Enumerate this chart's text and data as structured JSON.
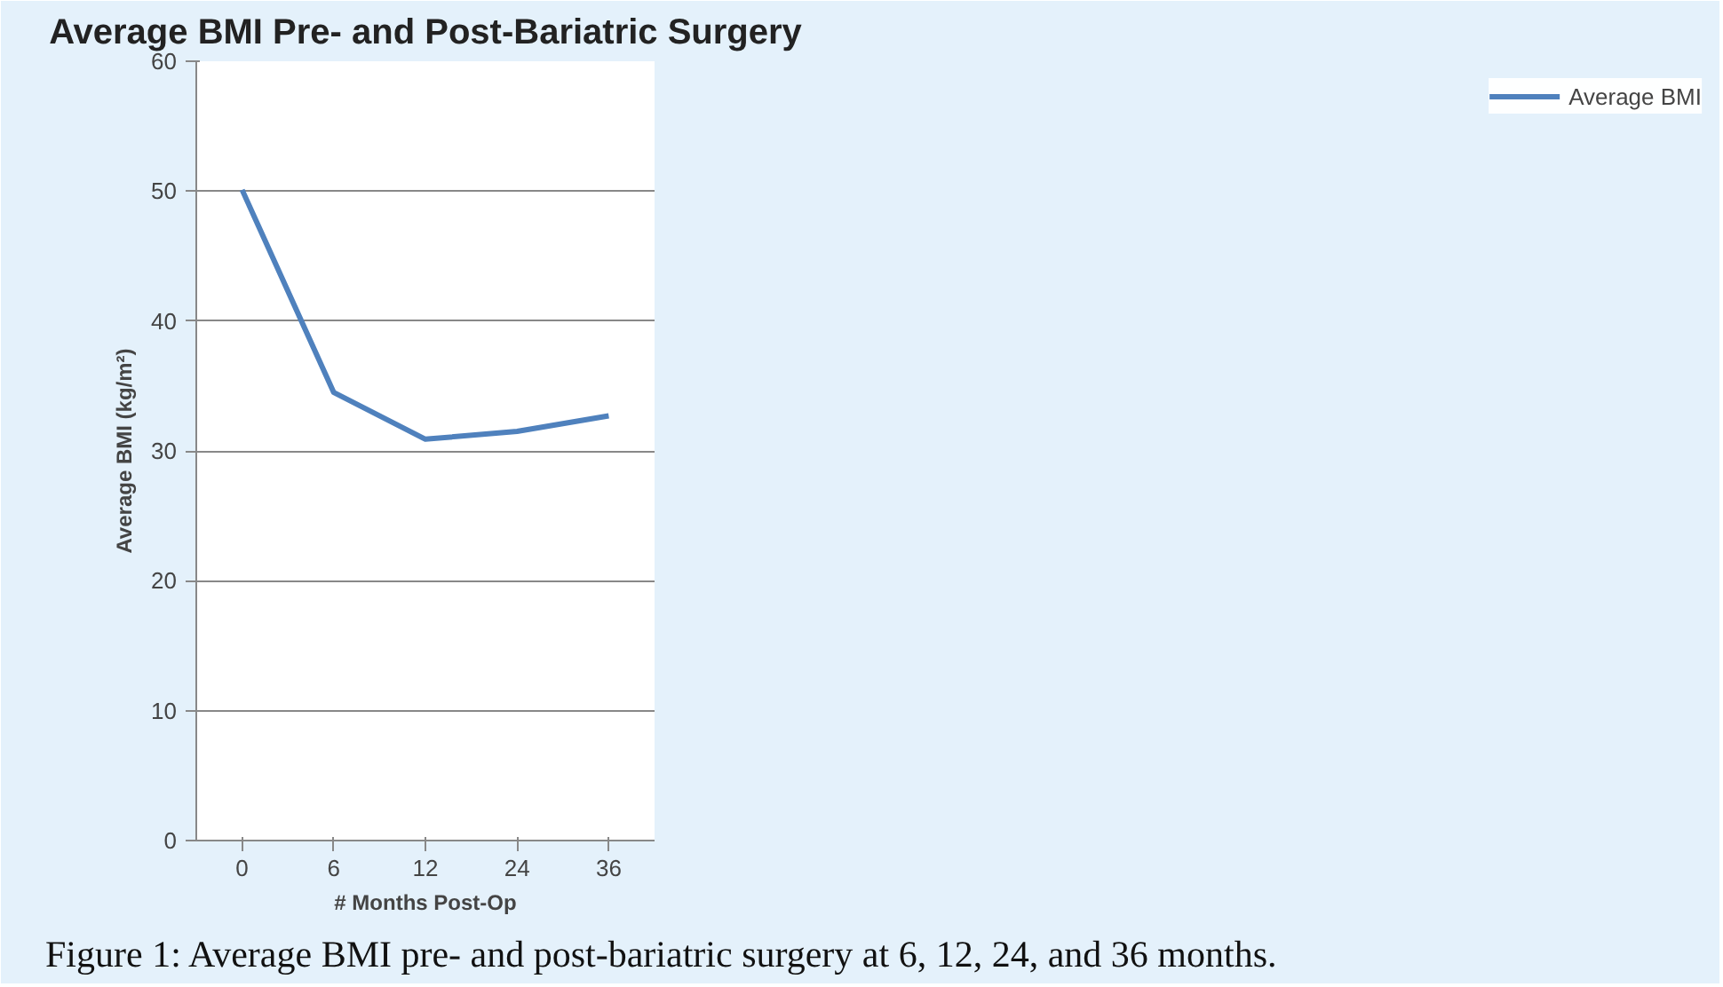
{
  "chart_data": {
    "type": "line",
    "title": "Average BMI Pre- and Post-Bariatric Surgery",
    "xlabel": "# Months Post-Op",
    "ylabel": "Average BMI (kg/m²)",
    "categories": [
      "0",
      "6",
      "12",
      "24",
      "36"
    ],
    "series": [
      {
        "name": "Average BMI",
        "color": "#4f81bd",
        "values": [
          50.1,
          34.5,
          30.9,
          31.5,
          32.7
        ]
      }
    ],
    "ylim": [
      0,
      60
    ],
    "yticks": [
      0,
      10,
      20,
      30,
      40,
      50,
      60
    ],
    "grid": "y",
    "legend": "right",
    "marker": "none",
    "line_style": "solid",
    "annotations": [
      "Figure 1: Average BMI pre- and post-bariatric surgery at 6, 12, 24, and 36 months."
    ]
  }
}
